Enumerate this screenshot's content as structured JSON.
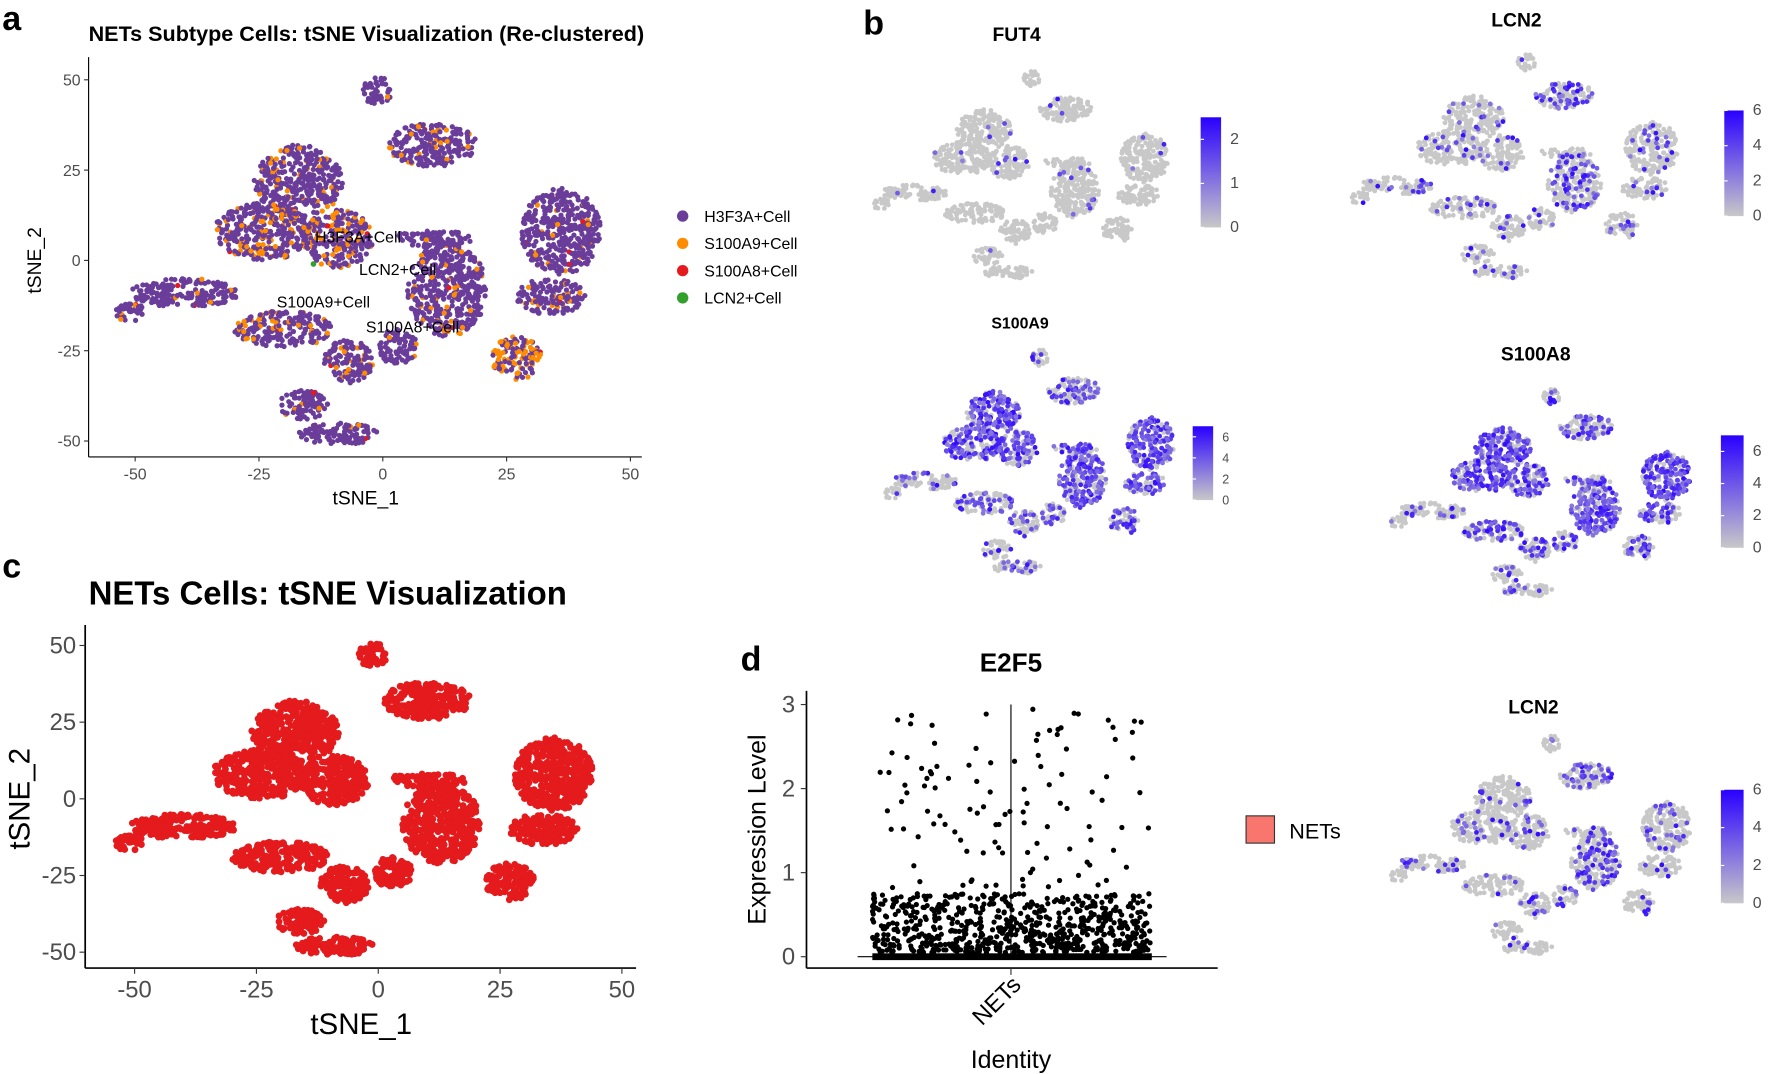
{
  "panel_labels": {
    "a": "a",
    "b": "b",
    "c": "c",
    "d": "d"
  },
  "colors": {
    "purple": "#6A3D9A",
    "orange": "#FF8C00",
    "red": "#E41A1C",
    "green": "#33A02C",
    "gray": "#C8C8C8",
    "blue": "#2A00FF",
    "nets_fill": "#F8766D"
  },
  "chart_data": [
    {
      "id": "a",
      "type": "scatter",
      "title": "NETs Subtype Cells: tSNE Visualization (Re-clustered)",
      "xlabel": "tSNE_1",
      "ylabel": "tSNE_2",
      "xlim": [
        -55,
        50
      ],
      "ylim": [
        -52,
        55
      ],
      "xticks": [
        "-50",
        "-25",
        "0",
        "25",
        "50"
      ],
      "yticks": [
        "50",
        "25",
        "0",
        "-25",
        "-50"
      ],
      "xtick_values": [
        -50,
        -25,
        0,
        25,
        50
      ],
      "ytick_values": [
        50,
        25,
        0,
        -25,
        -50
      ],
      "legend": {
        "placement": "right",
        "entries": [
          {
            "label": "H3F3A+Cell",
            "color": "#6A3D9A"
          },
          {
            "label": "S100A9+Cell",
            "color": "#FF8C00"
          },
          {
            "label": "S100A8+Cell",
            "color": "#E41A1C"
          },
          {
            "label": "LCN2+Cell",
            "color": "#33A02C"
          }
        ]
      },
      "annotations": [
        {
          "text": "H3F3A+Cell",
          "x": -5,
          "y": 5
        },
        {
          "text": "LCN2+Cell",
          "x": 3,
          "y": -4
        },
        {
          "text": "S100A9+Cell",
          "x": -12,
          "y": -13
        },
        {
          "text": "S100A8+Cell",
          "x": 6,
          "y": -20
        }
      ]
    },
    {
      "id": "b1",
      "type": "scatter",
      "title": "FUT4",
      "colorbar_ticks": [
        "2",
        "1",
        "0"
      ],
      "colorbar_range": [
        0,
        2.5
      ]
    },
    {
      "id": "b2",
      "type": "scatter",
      "title": "LCN2",
      "colorbar_ticks": [
        "6",
        "4",
        "2",
        "0"
      ],
      "colorbar_range": [
        0,
        6
      ]
    },
    {
      "id": "b3",
      "type": "scatter",
      "title": "S100A9",
      "colorbar_ticks": [
        "6",
        "4",
        "2",
        "0"
      ],
      "colorbar_range": [
        0,
        7
      ]
    },
    {
      "id": "b4",
      "type": "scatter",
      "title": "S100A8",
      "colorbar_ticks": [
        "6",
        "4",
        "2",
        "0"
      ],
      "colorbar_range": [
        0,
        7
      ]
    },
    {
      "id": "c",
      "type": "scatter",
      "title": "NETs Cells: tSNE Visualization",
      "xlabel": "tSNE_1",
      "ylabel": "tSNE_2",
      "xlim": [
        -55,
        50
      ],
      "ylim": [
        -52,
        55
      ],
      "xticks": [
        "-50",
        "-25",
        "0",
        "25",
        "50"
      ],
      "yticks": [
        "50",
        "25",
        "0",
        "-25",
        "-50"
      ],
      "xtick_values": [
        -50,
        -25,
        0,
        25,
        50
      ],
      "ytick_values": [
        50,
        25,
        0,
        -25,
        -50
      ]
    },
    {
      "id": "d",
      "type": "violin",
      "title": "E2F5",
      "xlabel": "Identity",
      "ylabel": "Expression Level",
      "categories": [
        "NETs"
      ],
      "ylim": [
        0,
        3
      ],
      "yticks": [
        "3",
        "2",
        "1",
        "0"
      ],
      "ytick_values": [
        3,
        2,
        1,
        0
      ],
      "legend": {
        "placement": "right",
        "entries": [
          {
            "label": "NETs",
            "color": "#F8766D"
          }
        ]
      }
    },
    {
      "id": "d2",
      "type": "scatter",
      "title": "LCN2",
      "colorbar_ticks": [
        "6",
        "4",
        "2",
        "0"
      ],
      "colorbar_range": [
        0,
        6
      ]
    }
  ]
}
